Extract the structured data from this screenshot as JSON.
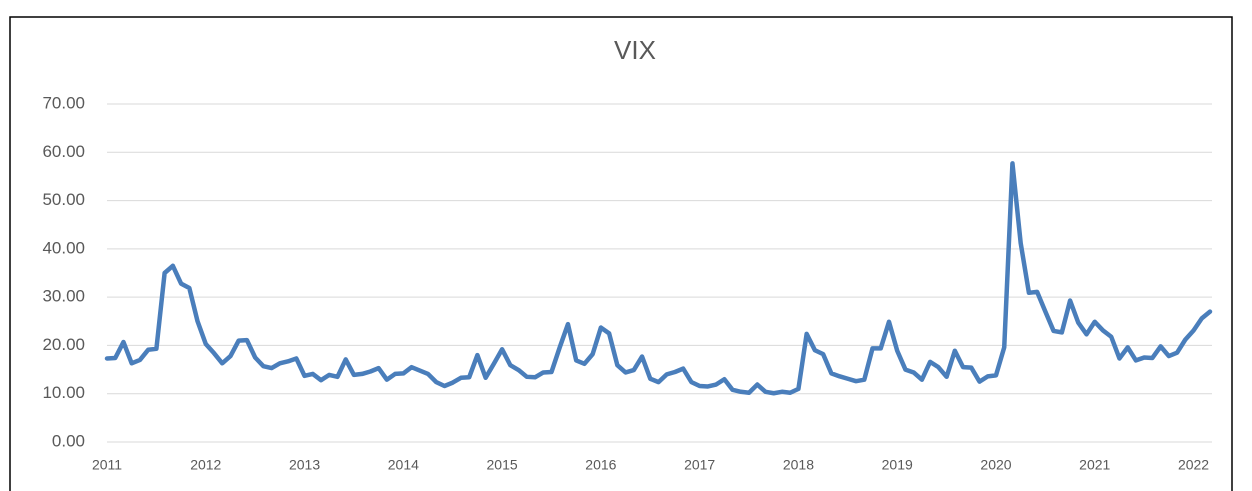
{
  "chart_data": {
    "type": "line",
    "title": "VIX",
    "categories": [
      "2011",
      null,
      null,
      null,
      null,
      null,
      null,
      null,
      null,
      null,
      null,
      null,
      "2012",
      null,
      null,
      null,
      null,
      null,
      null,
      null,
      null,
      null,
      null,
      null,
      "2013",
      null,
      null,
      null,
      null,
      null,
      null,
      null,
      null,
      null,
      null,
      null,
      "2014",
      null,
      null,
      null,
      null,
      null,
      null,
      null,
      null,
      null,
      null,
      null,
      "2015",
      null,
      null,
      null,
      null,
      null,
      null,
      null,
      null,
      null,
      null,
      null,
      "2016",
      null,
      null,
      null,
      null,
      null,
      null,
      null,
      null,
      null,
      null,
      null,
      "2017",
      null,
      null,
      null,
      null,
      null,
      null,
      null,
      null,
      null,
      null,
      null,
      "2018",
      null,
      null,
      null,
      null,
      null,
      null,
      null,
      null,
      null,
      null,
      null,
      "2019",
      null,
      null,
      null,
      null,
      null,
      null,
      null,
      null,
      null,
      null,
      null,
      "2020",
      null,
      null,
      null,
      null,
      null,
      null,
      null,
      null,
      null,
      null,
      null,
      "2021",
      null,
      null,
      null,
      null,
      null,
      null,
      null,
      null,
      null,
      null,
      null,
      "2022",
      null,
      null
    ],
    "series": [
      {
        "name": "VIX",
        "color": "#4a7ebb",
        "values": [
          17.3,
          17.4,
          20.7,
          16.3,
          17.0,
          19.1,
          19.3,
          35.0,
          36.5,
          32.8,
          31.9,
          25.0,
          20.3,
          18.4,
          16.3,
          17.8,
          21.0,
          21.1,
          17.5,
          15.7,
          15.3,
          16.3,
          16.7,
          17.3,
          13.7,
          14.1,
          12.8,
          13.9,
          13.5,
          17.1,
          13.9,
          14.1,
          14.6,
          15.3,
          12.9,
          14.1,
          14.2,
          15.5,
          14.8,
          14.1,
          12.4,
          11.6,
          12.3,
          13.3,
          13.4,
          18.0,
          13.3,
          16.2,
          19.2,
          15.9,
          14.9,
          13.5,
          13.4,
          14.4,
          14.5,
          19.6,
          24.4,
          16.9,
          16.2,
          18.2,
          23.7,
          22.5,
          15.9,
          14.4,
          14.9,
          17.7,
          13.1,
          12.4,
          14.0,
          14.5,
          15.2,
          12.4,
          11.6,
          11.5,
          11.9,
          13.0,
          10.8,
          10.4,
          10.2,
          11.9,
          10.4,
          10.1,
          10.4,
          10.2,
          11.0,
          22.4,
          19.0,
          18.2,
          14.2,
          13.6,
          13.1,
          12.6,
          12.9,
          19.4,
          19.4,
          24.9,
          18.9,
          15.0,
          14.4,
          12.9,
          16.6,
          15.5,
          13.5,
          18.9,
          15.5,
          15.4,
          12.5,
          13.6,
          13.8,
          19.6,
          57.7,
          41.2,
          30.9,
          31.1,
          27.0,
          23.0,
          22.7,
          29.3,
          24.7,
          22.3,
          24.9,
          23.1,
          21.8,
          17.3,
          19.6,
          16.9,
          17.5,
          17.4,
          19.8,
          17.8,
          18.5,
          21.2,
          23.1,
          25.6,
          27.0
        ]
      }
    ],
    "ylim": [
      0,
      70
    ],
    "yticks": [
      {
        "value": 0,
        "label": "0.00"
      },
      {
        "value": 10,
        "label": "10.00"
      },
      {
        "value": 20,
        "label": "20.00"
      },
      {
        "value": 30,
        "label": "30.00"
      },
      {
        "value": 40,
        "label": "40.00"
      },
      {
        "value": 50,
        "label": "50.00"
      },
      {
        "value": 60,
        "label": "60.00"
      },
      {
        "value": 70,
        "label": "70.00"
      }
    ],
    "grid": true
  }
}
